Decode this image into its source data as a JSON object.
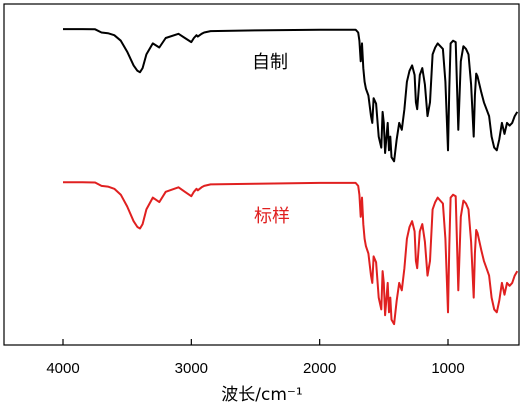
{
  "chart_data": {
    "type": "line",
    "xlabel": "波长/cm⁻¹",
    "ylabel": "",
    "xlim": [
      4000,
      450
    ],
    "x_ticks": [
      "4000",
      "3000",
      "2000",
      "1000"
    ],
    "x_tick_values": [
      4000,
      3000,
      2000,
      1000
    ],
    "grid": false,
    "series": [
      {
        "name": "自制",
        "color": "#000000",
        "x": [
          4000,
          3850,
          3750,
          3700,
          3650,
          3600,
          3550,
          3500,
          3450,
          3420,
          3400,
          3380,
          3350,
          3300,
          3250,
          3200,
          3100,
          3050,
          3000,
          2980,
          2960,
          2950,
          2920,
          2900,
          2850,
          2500,
          2000,
          1720,
          1700,
          1690,
          1680,
          1670,
          1660,
          1650,
          1640,
          1620,
          1600,
          1590,
          1580,
          1560,
          1540,
          1520,
          1510,
          1500,
          1490,
          1470,
          1460,
          1450,
          1440,
          1420,
          1400,
          1380,
          1360,
          1340,
          1320,
          1300,
          1280,
          1260,
          1250,
          1240,
          1220,
          1200,
          1180,
          1160,
          1140,
          1120,
          1100,
          1080,
          1060,
          1040,
          1020,
          1000,
          990,
          980,
          960,
          940,
          920,
          900,
          880,
          860,
          840,
          820,
          800,
          790,
          780,
          770,
          760,
          740,
          720,
          700,
          680,
          660,
          640,
          620,
          600,
          580,
          560,
          540,
          520,
          500,
          480,
          460
        ],
        "y": [
          98.5,
          98.5,
          98.3,
          96,
          95.5,
          94,
          90,
          82,
          72,
          68,
          67,
          70,
          80,
          88,
          85,
          92,
          95,
          92,
          89,
          92,
          94,
          93,
          95,
          96,
          97,
          97.5,
          98,
          98,
          96,
          90,
          75,
          88,
          70,
          60,
          55,
          50,
          35,
          30,
          48,
          44,
          20,
          12,
          38,
          30,
          8,
          30,
          10,
          20,
          5,
          2,
          18,
          30,
          25,
          40,
          60,
          68,
          72,
          65,
          45,
          40,
          65,
          70,
          58,
          35,
          45,
          80,
          85,
          88,
          86,
          84,
          60,
          10,
          55,
          88,
          90,
          89,
          25,
          75,
          86,
          84,
          80,
          58,
          20,
          50,
          66,
          64,
          60,
          52,
          45,
          40,
          35,
          20,
          12,
          10,
          18,
          30,
          22,
          30,
          28,
          30,
          35,
          38
        ]
      },
      {
        "name": "标样",
        "color": "#e02020",
        "x": [
          4000,
          3850,
          3750,
          3700,
          3650,
          3600,
          3550,
          3500,
          3450,
          3420,
          3400,
          3380,
          3350,
          3300,
          3250,
          3200,
          3100,
          3050,
          3000,
          2980,
          2960,
          2950,
          2920,
          2900,
          2850,
          2500,
          2000,
          1720,
          1700,
          1690,
          1680,
          1670,
          1660,
          1650,
          1640,
          1620,
          1600,
          1590,
          1580,
          1560,
          1540,
          1520,
          1510,
          1500,
          1490,
          1470,
          1460,
          1450,
          1440,
          1420,
          1400,
          1380,
          1360,
          1340,
          1320,
          1300,
          1280,
          1260,
          1250,
          1240,
          1220,
          1200,
          1180,
          1160,
          1140,
          1120,
          1100,
          1080,
          1060,
          1040,
          1020,
          1000,
          990,
          980,
          960,
          940,
          920,
          900,
          880,
          860,
          840,
          820,
          800,
          790,
          780,
          770,
          760,
          740,
          720,
          700,
          680,
          660,
          640,
          620,
          600,
          580,
          560,
          540,
          520,
          500,
          480,
          460
        ],
        "y": [
          98.5,
          98.5,
          98.3,
          96,
          95.5,
          94,
          90,
          82,
          72,
          68,
          67,
          70,
          80,
          88,
          85,
          92,
          95,
          92,
          89,
          92,
          94,
          93,
          95,
          96,
          97,
          97.5,
          98,
          98,
          96,
          90,
          75,
          88,
          70,
          60,
          55,
          50,
          35,
          30,
          48,
          44,
          20,
          12,
          38,
          30,
          8,
          30,
          10,
          20,
          5,
          2,
          18,
          30,
          25,
          40,
          60,
          68,
          72,
          65,
          45,
          40,
          65,
          70,
          58,
          35,
          45,
          80,
          85,
          88,
          86,
          84,
          60,
          10,
          55,
          88,
          90,
          89,
          25,
          75,
          86,
          84,
          80,
          58,
          20,
          50,
          66,
          64,
          60,
          52,
          45,
          40,
          35,
          20,
          12,
          10,
          18,
          30,
          22,
          30,
          28,
          30,
          35,
          38
        ]
      }
    ]
  }
}
